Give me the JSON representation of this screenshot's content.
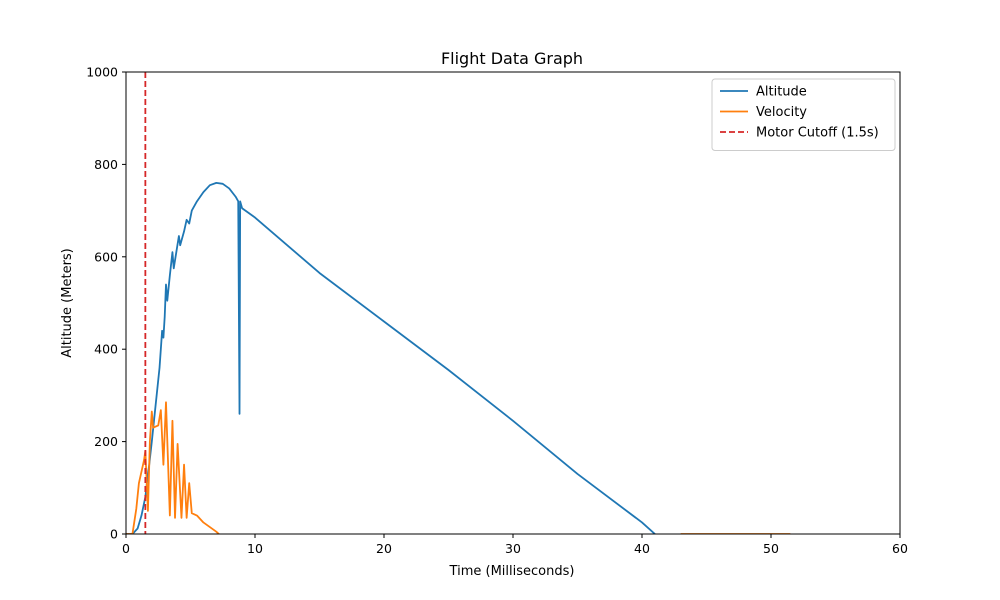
{
  "chart_data": {
    "type": "line",
    "title": "Flight Data Graph",
    "xlabel": "Time (Milliseconds)",
    "ylabel": "Altitude (Meters)",
    "xlim": [
      0,
      60
    ],
    "ylim": [
      0,
      1000
    ],
    "xticks": [
      0,
      10,
      20,
      30,
      40,
      50,
      60
    ],
    "yticks": [
      0,
      200,
      400,
      600,
      800,
      1000
    ],
    "grid": false,
    "legend_position": "top-right",
    "series": [
      {
        "name": "Altitude",
        "color": "#1f77b4",
        "style": "solid",
        "points": [
          [
            0.0,
            0
          ],
          [
            0.5,
            0
          ],
          [
            0.9,
            12
          ],
          [
            1.2,
            40
          ],
          [
            1.5,
            80
          ],
          [
            1.7,
            130
          ],
          [
            1.8,
            150
          ],
          [
            2.0,
            200
          ],
          [
            2.3,
            280
          ],
          [
            2.6,
            360
          ],
          [
            2.8,
            440
          ],
          [
            2.9,
            425
          ],
          [
            3.0,
            470
          ],
          [
            3.1,
            540
          ],
          [
            3.2,
            505
          ],
          [
            3.4,
            560
          ],
          [
            3.6,
            610
          ],
          [
            3.7,
            575
          ],
          [
            3.9,
            610
          ],
          [
            4.1,
            645
          ],
          [
            4.2,
            625
          ],
          [
            4.5,
            655
          ],
          [
            4.7,
            680
          ],
          [
            4.9,
            672
          ],
          [
            5.1,
            700
          ],
          [
            5.5,
            720
          ],
          [
            6.0,
            740
          ],
          [
            6.5,
            755
          ],
          [
            7.0,
            760
          ],
          [
            7.5,
            758
          ],
          [
            8.0,
            748
          ],
          [
            8.5,
            730
          ],
          [
            8.7,
            720
          ],
          [
            8.8,
            260
          ],
          [
            8.85,
            720
          ],
          [
            9.0,
            705
          ],
          [
            9.5,
            695
          ],
          [
            10,
            685
          ],
          [
            15,
            565
          ],
          [
            20,
            460
          ],
          [
            25,
            355
          ],
          [
            30,
            245
          ],
          [
            35,
            130
          ],
          [
            40,
            25
          ],
          [
            41.0,
            0
          ]
        ]
      },
      {
        "name": "Velocity",
        "color": "#ff7f0e",
        "style": "solid",
        "points": [
          [
            0.0,
            0
          ],
          [
            0.5,
            0
          ],
          [
            0.8,
            55
          ],
          [
            1.0,
            110
          ],
          [
            1.4,
            160
          ],
          [
            1.5,
            180
          ],
          [
            1.7,
            50
          ],
          [
            1.85,
            200
          ],
          [
            2.0,
            265
          ],
          [
            2.1,
            230
          ],
          [
            2.5,
            235
          ],
          [
            2.7,
            268
          ],
          [
            2.9,
            150
          ],
          [
            3.1,
            285
          ],
          [
            3.4,
            40
          ],
          [
            3.6,
            245
          ],
          [
            3.8,
            35
          ],
          [
            4.0,
            195
          ],
          [
            4.3,
            35
          ],
          [
            4.5,
            150
          ],
          [
            4.7,
            35
          ],
          [
            4.9,
            110
          ],
          [
            5.1,
            45
          ],
          [
            5.5,
            40
          ],
          [
            6.0,
            25
          ],
          [
            6.5,
            15
          ],
          [
            7.0,
            5
          ],
          [
            7.2,
            0
          ]
        ]
      },
      {
        "name": "Velocity-tail",
        "color": "#ff7f0e",
        "style": "solid",
        "points": [
          [
            43,
            0
          ],
          [
            51.5,
            0
          ]
        ]
      }
    ],
    "annotations": [
      {
        "type": "vline",
        "name": "Motor Cutoff (1.5s)",
        "x": 1.5,
        "color": "#d62728",
        "style": "dashed"
      }
    ]
  },
  "legend": {
    "items": [
      {
        "label": "Altitude",
        "color": "#1f77b4",
        "style": "solid"
      },
      {
        "label": "Velocity",
        "color": "#ff7f0e",
        "style": "solid"
      },
      {
        "label": "Motor Cutoff (1.5s)",
        "color": "#d62728",
        "style": "dashed"
      }
    ]
  }
}
